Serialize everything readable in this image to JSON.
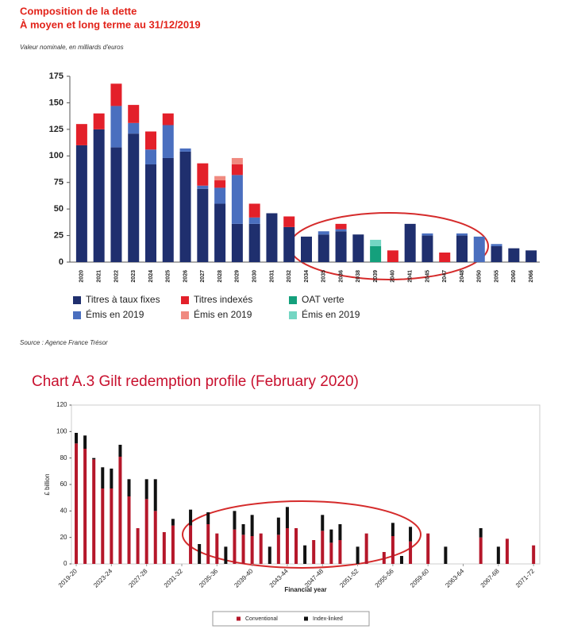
{
  "chart_data": [
    {
      "type": "bar",
      "stacked": true,
      "title": "Composition de la dette",
      "subtitle": "À moyen et long terme au 31/12/2019",
      "note": "Valeur nominale, en milliards d'euros",
      "source": "Source : Agence France Trésor",
      "categories": [
        "2020",
        "2021",
        "2022",
        "2023",
        "2024",
        "2025",
        "2026",
        "2027",
        "2028",
        "2029",
        "2030",
        "2031",
        "2032",
        "2034",
        "2035",
        "2036",
        "2038",
        "2039",
        "2040",
        "2041",
        "2045",
        "2047",
        "2048",
        "2050",
        "2055",
        "2060",
        "2066"
      ],
      "series": [
        {
          "name": "Titres à taux fixes",
          "color": "#1f2f6e",
          "values": [
            110,
            125,
            108,
            121,
            92,
            98,
            104,
            69,
            55,
            36,
            36,
            46,
            33,
            24,
            26,
            29,
            26,
            0,
            0,
            36,
            25,
            0,
            25,
            0,
            15,
            13,
            11
          ]
        },
        {
          "name": "Émis en 2019",
          "color": "#4a6fbf",
          "values": [
            0,
            0,
            39,
            10,
            14,
            31,
            3,
            3,
            15,
            46,
            6,
            0,
            0,
            0,
            3,
            2,
            0,
            0,
            0,
            0,
            2,
            0,
            2,
            24,
            2,
            0,
            0
          ]
        },
        {
          "name": "Titres indexés",
          "color": "#e3202a",
          "values": [
            20,
            15,
            21,
            17,
            17,
            11,
            0,
            21,
            7,
            10,
            13,
            0,
            10,
            0,
            0,
            5,
            0,
            0,
            11,
            0,
            0,
            9,
            0,
            0,
            0,
            0,
            0
          ]
        },
        {
          "name": "Émis en 2019",
          "color": "#f08a80",
          "values": [
            0,
            0,
            0,
            0,
            0,
            0,
            0,
            0,
            4,
            6,
            0,
            0,
            0,
            0,
            0,
            0,
            0,
            0,
            0,
            0,
            0,
            0,
            0,
            0,
            0,
            0,
            0
          ]
        },
        {
          "name": "OAT verte",
          "color": "#14a07c",
          "values": [
            0,
            0,
            0,
            0,
            0,
            0,
            0,
            0,
            0,
            0,
            0,
            0,
            0,
            0,
            0,
            0,
            0,
            15,
            0,
            0,
            0,
            0,
            0,
            0,
            0,
            0,
            0
          ]
        },
        {
          "name": "Émis en 2019",
          "color": "#74d6c3",
          "values": [
            0,
            0,
            0,
            0,
            0,
            0,
            0,
            0,
            0,
            0,
            0,
            0,
            0,
            0,
            0,
            0,
            0,
            6,
            0,
            0,
            0,
            0,
            0,
            0,
            0,
            0,
            0
          ]
        }
      ],
      "ylim": [
        0,
        175
      ],
      "yticks": [
        0,
        25,
        50,
        75,
        100,
        125,
        150,
        175
      ],
      "grid": false
    },
    {
      "type": "bar",
      "stacked": true,
      "title": "Chart A.3 Gilt redemption profile (February 2020)",
      "x_label": "Financial year",
      "y_label": "£ billion",
      "categories": [
        "2019-20",
        null,
        null,
        null,
        "2023-24",
        null,
        null,
        null,
        "2027-28",
        null,
        null,
        null,
        "2031-32",
        null,
        null,
        null,
        "2035-36",
        null,
        null,
        null,
        "2039-40",
        null,
        null,
        null,
        "2043-44",
        null,
        null,
        null,
        "2047-48",
        null,
        null,
        null,
        "2051-52",
        null,
        null,
        null,
        "2055-56",
        null,
        null,
        null,
        "2059-60",
        null,
        null,
        null,
        "2063-64",
        null,
        null,
        null,
        "2067-68",
        null,
        null,
        null,
        "2071-72"
      ],
      "series": [
        {
          "name": "Conventional",
          "color": "#b5172a",
          "values": [
            91,
            87,
            79,
            57,
            57,
            81,
            51,
            27,
            49,
            40,
            24,
            29,
            0,
            29,
            0,
            30,
            23,
            0,
            26,
            22,
            21,
            23,
            0,
            22,
            27,
            27,
            0,
            18,
            25,
            16,
            18,
            0,
            0,
            23,
            0,
            9,
            21,
            0,
            17,
            0,
            23,
            0,
            0,
            0,
            0,
            0,
            20,
            0,
            0,
            19,
            0,
            0,
            14
          ]
        },
        {
          "name": "Index-linked",
          "color": "#111111",
          "values": [
            8,
            10,
            1,
            16,
            15,
            9,
            13,
            0,
            15,
            24,
            0,
            5,
            0,
            12,
            15,
            9,
            0,
            13,
            14,
            8,
            16,
            0,
            13,
            13,
            16,
            0,
            14,
            0,
            12,
            10,
            12,
            0,
            13,
            0,
            0,
            0,
            10,
            6,
            11,
            0,
            0,
            0,
            13,
            0,
            0,
            0,
            7,
            0,
            13,
            0,
            0,
            0,
            0
          ]
        }
      ],
      "ylim": [
        0,
        120
      ],
      "yticks": [
        0,
        20,
        40,
        60,
        80,
        100,
        120
      ],
      "grid": false
    }
  ]
}
